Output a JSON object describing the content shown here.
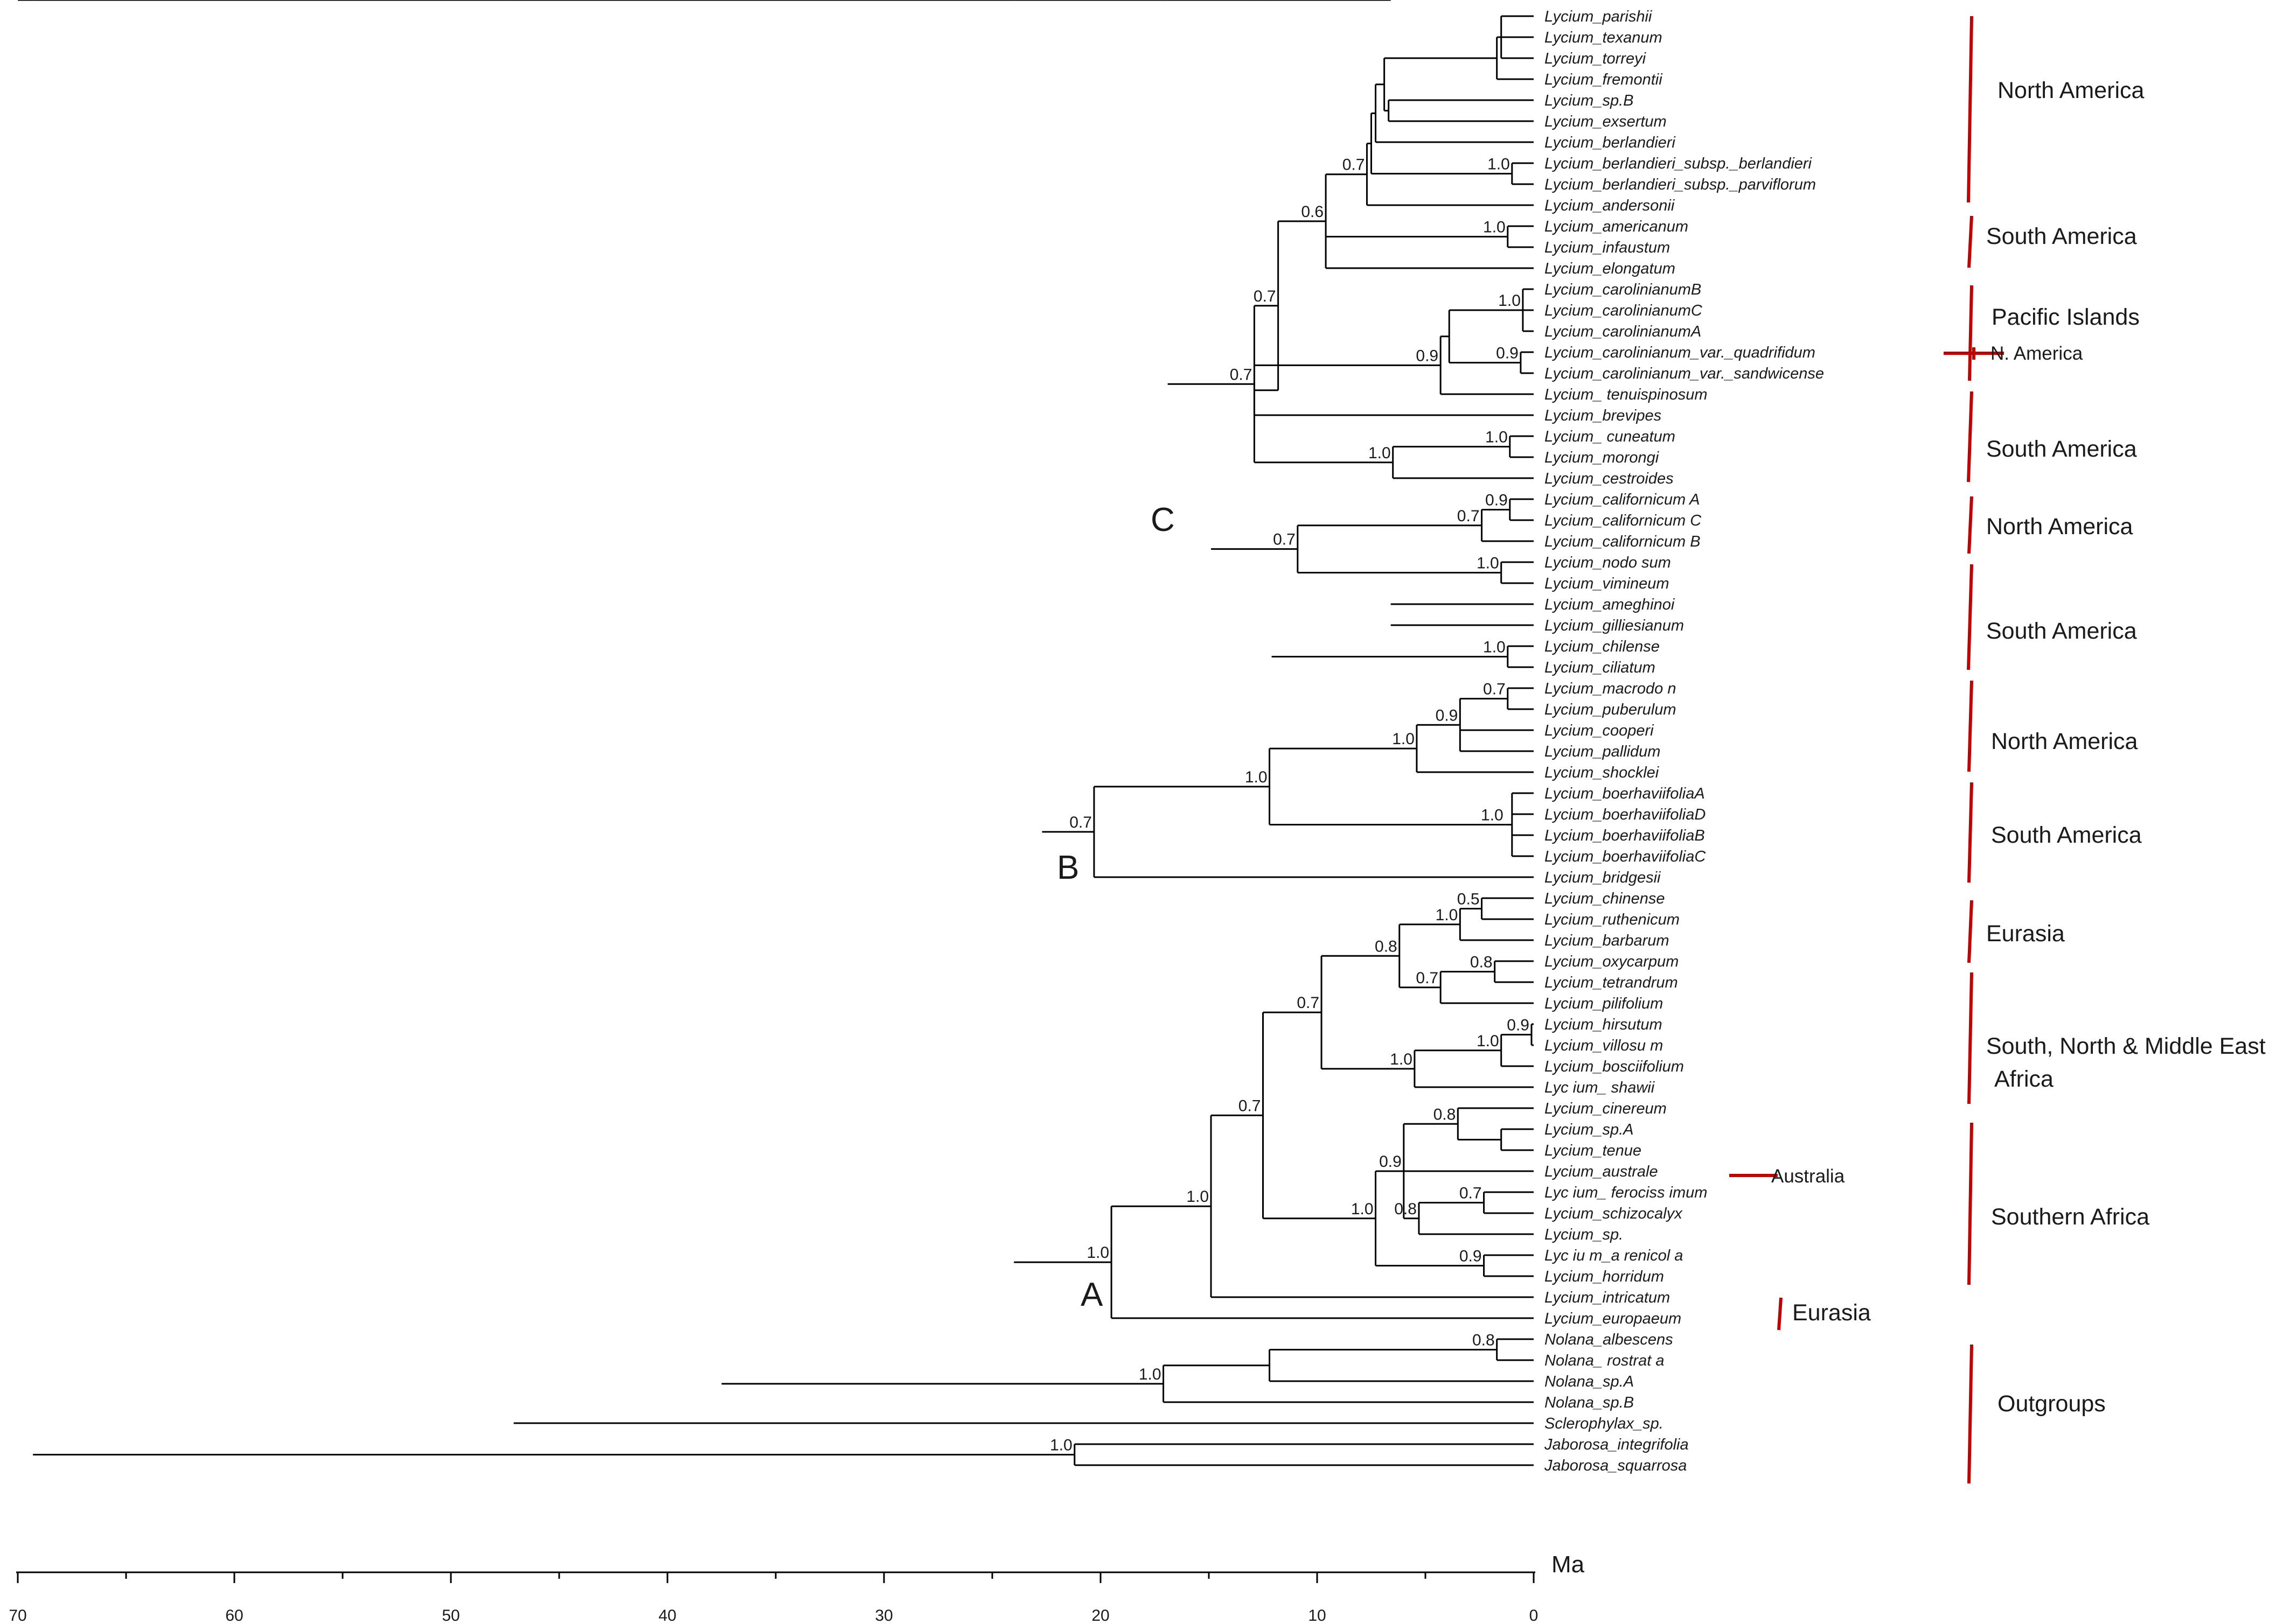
{
  "taxa": [
    "Lycium_parishii",
    "Lycium_texanum",
    "Lycium_torreyi",
    "Lycium_fremontii",
    "Lycium_sp.B",
    "Lycium_exsertum",
    "Lycium_berlandieri",
    "Lycium_berlandieri_subsp._berlandieri",
    "Lycium_berlandieri_subsp._parviflorum",
    "Lycium_andersonii",
    "Lycium_americanum",
    "Lycium_infaustum",
    "Lycium_elongatum",
    "Lycium_carolinianumB",
    "Lycium_carolinianumC",
    "Lycium_carolinianumA",
    "Lycium_carolinianum_var._quadrifidum",
    "Lycium_carolinianum_var._sandwicense",
    "Lycium_   tenuispinosum",
    "Lycium_brevipes",
    "Lycium_ cuneatum",
    "Lycium_morongi",
    "Lycium_cestroides",
    "Lycium_californicum A",
    "Lycium_californicum C",
    "Lycium_californicum B",
    "Lycium_nodo sum",
    "Lycium_vimineum",
    "Lycium_ameghinoi",
    "Lycium_gilliesianum",
    "Lycium_chilense",
    "Lycium_ciliatum",
    "Lycium_macrodo n",
    "Lycium_puberulum",
    "Lycium_cooperi",
    "Lycium_pallidum",
    "Lycium_shocklei",
    "Lycium_boerhaviifoliaA",
    "Lycium_boerhaviifoliaD",
    "Lycium_boerhaviifoliaB",
    "Lycium_boerhaviifoliaC",
    "Lycium_bridgesii",
    "Lycium_chinense",
    "Lycium_ruthenicum",
    "Lycium_barbarum",
    "Lycium_oxycarpum",
    "Lycium_tetrandrum",
    "Lycium_pilifolium",
    "Lycium_hirsutum",
    "Lycium_villosu m",
    "Lycium_bosciifolium",
    "Lyc ium_ shawii",
    "Lycium_cinereum",
    "Lycium_sp.A",
    "Lycium_tenue",
    "Lycium_australe",
    "Lyc ium_ ferociss imum",
    "Lycium_schizocalyx",
    "Lycium_sp.",
    "Lyc iu m_a renicol a",
    "Lycium_horridum",
    "Lycium_intricatum",
    "Lycium_europaeum",
    "Nolana_albescens",
    "Nolana_ rostrat a",
    "Nolana_sp.A",
    "Nolana_sp.B",
    "Sclerophylax_sp.",
    "Jaborosa_integrifolia",
    "Jaborosa_squarrosa"
  ],
  "tree": [
    {
      "a": "root",
      "s": "1.0",
      "t": 69.3
    },
    {
      "a": "ingroup",
      "p": "root",
      "s": "1.0",
      "t": 47.1
    },
    {
      "a": "jab",
      "p": "root",
      "s": "1.0",
      "t": 21.2
    },
    {
      "p": "jab",
      "l": 68
    },
    {
      "p": "jab",
      "l": 69
    },
    {
      "a": "solNol",
      "p": "ingroup",
      "s": "1.0",
      "t": 37.5
    },
    {
      "p": "ingroup",
      "l": 67
    },
    {
      "a": "nol",
      "p": "solNol",
      "s": "1.0",
      "t": 17.1
    },
    {
      "a": "nolAR",
      "p": "nol",
      "s": "",
      "t": 12.2
    },
    {
      "a": "nolAR2",
      "p": "nolAR",
      "s": "0.8",
      "t": 1.7
    },
    {
      "p": "nolAR2",
      "l": 63
    },
    {
      "p": "nolAR2",
      "l": 64
    },
    {
      "p": "nolAR",
      "l": 65
    },
    {
      "p": "nol",
      "l": 66
    },
    {
      "a": "lyc",
      "p": "solNol",
      "s": "1.0",
      "t": 24.0
    },
    {
      "a": "cladeA",
      "p": "lyc",
      "s": "1.0",
      "t": 19.5
    },
    {
      "a": "nC",
      "p": "lyc",
      "s": "",
      "t": 22.7
    },
    {
      "a": "cladeC",
      "p": "nC",
      "s": "1.0",
      "t": 16.9
    },
    {
      "a": "cladeB",
      "p": "nC",
      "s": "0.7",
      "t": 20.3
    },
    {
      "a": "c1",
      "p": "cladeC",
      "s": "0.7",
      "t": 12.9
    },
    {
      "a": "c2",
      "p": "cladeC",
      "s": "",
      "t": 14.9
    },
    {
      "a": "c3",
      "p": "c1",
      "s": "0.7",
      "t": 11.8
    },
    {
      "a": "c4",
      "p": "c1",
      "s": "",
      "t": 12.9
    },
    {
      "a": "c5",
      "p": "c3",
      "s": "0.6",
      "t": 9.6
    },
    {
      "a": "c6",
      "p": "c3",
      "s": "",
      "t": 12.9
    },
    {
      "a": "c7",
      "p": "c5",
      "s": "0.7",
      "t": 7.7
    },
    {
      "a": "c8",
      "p": "c5",
      "s": "1.0",
      "t": 1.2
    },
    {
      "p": "c5",
      "l": 12
    },
    {
      "p": "c8",
      "l": 10
    },
    {
      "p": "c8",
      "l": 11
    },
    {
      "a": "c9",
      "p": "c7",
      "s": "",
      "t": 7.5
    },
    {
      "p": "c7",
      "l": 9
    },
    {
      "a": "c10",
      "p": "c9",
      "s": "",
      "t": 7.3
    },
    {
      "a": "c11",
      "p": "c9",
      "s": "1.0",
      "t": 1.0
    },
    {
      "p": "c11",
      "l": 7
    },
    {
      "p": "c11",
      "l": 8
    },
    {
      "a": "c12",
      "p": "c10",
      "s": "",
      "t": 6.9
    },
    {
      "p": "c10",
      "l": 6
    },
    {
      "a": "c13",
      "p": "c12",
      "s": "",
      "t": 1.7
    },
    {
      "a": "c14",
      "p": "c12",
      "s": "",
      "t": 6.7
    },
    {
      "a": "c15",
      "p": "c13",
      "s": "",
      "t": 1.5
    },
    {
      "p": "c13",
      "l": 3
    },
    {
      "p": "c15",
      "l": 0
    },
    {
      "p": "c15",
      "l": 1
    },
    {
      "p": "c15",
      "l": 2
    },
    {
      "p": "c14",
      "l": 4
    },
    {
      "p": "c14",
      "l": 5
    },
    {
      "a": "c16",
      "p": "c6",
      "s": "0.9",
      "t": 4.3
    },
    {
      "p": "c6",
      "l": 19
    },
    {
      "a": "c17",
      "p": "c16",
      "s": "",
      "t": 3.9
    },
    {
      "p": "c16",
      "l": 18
    },
    {
      "a": "c18",
      "p": "c17",
      "s": "1.0",
      "t": 0.5
    },
    {
      "a": "c19",
      "p": "c17",
      "s": "0.9",
      "t": 0.6
    },
    {
      "p": "c18",
      "l": 13
    },
    {
      "p": "c18",
      "l": 14
    },
    {
      "p": "c18",
      "l": 15
    },
    {
      "p": "c19",
      "l": 16
    },
    {
      "p": "c19",
      "l": 17
    },
    {
      "a": "c20",
      "p": "c4",
      "s": "1.0",
      "t": 6.5
    },
    {
      "a": "c21",
      "p": "c20",
      "s": "1.0",
      "t": 1.1
    },
    {
      "p": "c21",
      "l": 20
    },
    {
      "p": "c21",
      "l": 21
    },
    {
      "p": "c20",
      "l": 22
    },
    {
      "a": "c22",
      "p": "c2",
      "s": "0.7",
      "t": 10.9
    },
    {
      "a": "c23",
      "p": "c2",
      "s": "0.9",
      "t": 12.1
    },
    {
      "a": "c24",
      "p": "c22",
      "s": "0.7",
      "t": 2.4
    },
    {
      "a": "c25",
      "p": "c22",
      "s": "1.0",
      "t": 1.5
    },
    {
      "a": "c26",
      "p": "c24",
      "s": "0.9",
      "t": 1.1
    },
    {
      "p": "c24",
      "l": 25
    },
    {
      "p": "c26",
      "l": 23
    },
    {
      "p": "c26",
      "l": 24
    },
    {
      "p": "c25",
      "l": 26
    },
    {
      "p": "c25",
      "l": 27
    },
    {
      "a": "c27",
      "p": "c23",
      "s": "0.9",
      "t": 6.6
    },
    {
      "a": "c28",
      "p": "c23",
      "s": "1.0",
      "t": 1.2
    },
    {
      "a": "c29",
      "p": "c27",
      "s": "",
      "t": 6.6
    },
    {
      "p": "c27",
      "l": 28
    },
    {
      "p": "c27",
      "l": 29
    },
    {
      "p": "c28",
      "l": 30
    },
    {
      "p": "c28",
      "l": 31
    },
    {
      "a": "b1",
      "p": "cladeB",
      "s": "1.0",
      "t": 12.2
    },
    {
      "p": "cladeB",
      "l": 41
    },
    {
      "a": "b2",
      "p": "b1",
      "s": "1.0",
      "t": 5.4
    },
    {
      "a": "b3",
      "p": "b1",
      "s": "1.0",
      "t": 1.3
    },
    {
      "a": "b4",
      "p": "b2",
      "s": "0.9",
      "t": 3.4
    },
    {
      "p": "b2",
      "l": 36
    },
    {
      "a": "b5",
      "p": "b4",
      "s": "0.7",
      "t": 1.2
    },
    {
      "p": "b4",
      "l": 34
    },
    {
      "p": "b4",
      "l": 35
    },
    {
      "p": "b5",
      "l": 32
    },
    {
      "p": "b5",
      "l": 33
    },
    {
      "a": "b6",
      "p": "b3",
      "s": "",
      "t": 1.0
    },
    {
      "p": "b6",
      "l": 37
    },
    {
      "p": "b6",
      "l": 38
    },
    {
      "p": "b6",
      "l": 39
    },
    {
      "p": "b6",
      "l": 40
    },
    {
      "a": "a1",
      "p": "cladeA",
      "s": "1.0",
      "t": 14.9
    },
    {
      "p": "cladeA",
      "l": 62
    },
    {
      "a": "a2",
      "p": "a1",
      "s": "0.7",
      "t": 12.5
    },
    {
      "p": "a1",
      "l": 61
    },
    {
      "a": "a3",
      "p": "a2",
      "s": "0.7",
      "t": 9.8
    },
    {
      "a": "a4",
      "p": "a2",
      "s": "1.0",
      "t": 7.3
    },
    {
      "a": "a5",
      "p": "a3",
      "s": "0.8",
      "t": 6.2
    },
    {
      "a": "a6",
      "p": "a3",
      "s": "1.0",
      "t": 5.5
    },
    {
      "a": "a7",
      "p": "a5",
      "s": "1.0",
      "t": 3.4
    },
    {
      "a": "a8",
      "p": "a5",
      "s": "0.7",
      "t": 4.3
    },
    {
      "a": "a9",
      "p": "a7",
      "s": "0.5",
      "t": 2.4
    },
    {
      "p": "a7",
      "l": 44
    },
    {
      "p": "a9",
      "l": 42
    },
    {
      "p": "a9",
      "l": 43
    },
    {
      "a": "a10",
      "p": "a8",
      "s": "0.8",
      "t": 1.8
    },
    {
      "p": "a8",
      "l": 47
    },
    {
      "p": "a10",
      "l": 45
    },
    {
      "p": "a10",
      "l": 46
    },
    {
      "a": "a11",
      "p": "a6",
      "s": "1.0",
      "t": 1.5
    },
    {
      "p": "a6",
      "l": 51
    },
    {
      "a": "a12",
      "p": "a11",
      "s": "0.9",
      "t": 0.1
    },
    {
      "p": "a11",
      "l": 50
    },
    {
      "p": "a12",
      "l": 48
    },
    {
      "p": "a12",
      "l": 49
    },
    {
      "a": "a13",
      "p": "a4",
      "s": "0.9",
      "t": 6.0
    },
    {
      "a": "a14",
      "p": "a4",
      "s": "0.9",
      "t": 2.3
    },
    {
      "a": "a15",
      "p": "a13",
      "s": "0.8",
      "t": 3.5
    },
    {
      "a": "a16",
      "p": "a13",
      "s": "0.8",
      "t": 5.3
    },
    {
      "p": "a13",
      "l": 55
    },
    {
      "a": "a17",
      "p": "a15",
      "s": "",
      "t": 1.5
    },
    {
      "p": "a15",
      "l": 52
    },
    {
      "p": "a17",
      "l": 53
    },
    {
      "p": "a17",
      "l": 54
    },
    {
      "a": "a18",
      "p": "a16",
      "s": "0.7",
      "t": 2.3
    },
    {
      "p": "a16",
      "l": 58
    },
    {
      "p": "a18",
      "l": 56
    },
    {
      "p": "a18",
      "l": 57
    },
    {
      "p": "a14",
      "l": 59
    },
    {
      "p": "a14",
      "l": 60
    }
  ],
  "clade_labels": [
    "C",
    "B",
    "A"
  ],
  "regions": [
    "North America",
    "South America",
    "Pacific Islands",
    "South America",
    "North America",
    "South America",
    "North America",
    "South America",
    "Eurasia",
    "South, North & Middle East",
    "Africa",
    "Southern Africa",
    "Outgroups"
  ],
  "side_labels": [
    "N. America",
    "Australia",
    "Eurasia"
  ],
  "axis": {
    "unit": "Ma",
    "min": 0,
    "max": 70,
    "ticks": [
      "70",
      "60",
      "50",
      "40",
      "30",
      "20",
      "10",
      "0"
    ]
  },
  "colors": {
    "line": "#000000",
    "region_bar": "#c00000"
  }
}
